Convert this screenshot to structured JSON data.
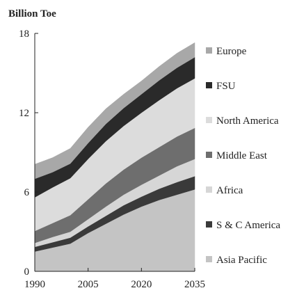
{
  "chart_data": {
    "type": "area",
    "stacked": true,
    "ylabel": "Billion Toe",
    "x": [
      1990,
      1995,
      2000,
      2005,
      2010,
      2015,
      2020,
      2025,
      2030,
      2035
    ],
    "xticks": [
      1990,
      2005,
      2020,
      2035
    ],
    "yticks": [
      0,
      6,
      12,
      18
    ],
    "xlim": [
      1990,
      2035
    ],
    "ylim": [
      0,
      18
    ],
    "grid": false,
    "legend_position": "right",
    "series": [
      {
        "name": "Asia Pacific",
        "color": "#c4c4c4",
        "values": [
          1.5,
          1.8,
          2.1,
          2.9,
          3.6,
          4.3,
          4.9,
          5.4,
          5.8,
          6.2
        ]
      },
      {
        "name": "S & C America",
        "color": "#3a3a3a",
        "values": [
          0.35,
          0.4,
          0.45,
          0.5,
          0.6,
          0.7,
          0.75,
          0.85,
          0.95,
          1.0
        ]
      },
      {
        "name": "Africa",
        "color": "#d6d6d6",
        "values": [
          0.3,
          0.4,
          0.45,
          0.55,
          0.7,
          0.8,
          0.9,
          1.0,
          1.2,
          1.3
        ]
      },
      {
        "name": "Middle East",
        "color": "#6e6e6e",
        "values": [
          0.9,
          1.05,
          1.25,
          1.5,
          1.75,
          1.9,
          2.05,
          2.15,
          2.25,
          2.35
        ]
      },
      {
        "name": "North America",
        "color": "#dcdcdc",
        "values": [
          2.55,
          2.7,
          2.8,
          3.05,
          3.2,
          3.3,
          3.4,
          3.55,
          3.65,
          3.75
        ]
      },
      {
        "name": "FSU",
        "color": "#2a2a2a",
        "values": [
          1.4,
          1.15,
          1.1,
          1.2,
          1.3,
          1.35,
          1.4,
          1.5,
          1.55,
          1.6
        ]
      },
      {
        "name": "Europe",
        "color": "#a8a8a8",
        "values": [
          1.1,
          1.1,
          1.15,
          1.2,
          1.15,
          1.05,
          1.0,
          1.05,
          1.1,
          1.1
        ]
      }
    ],
    "legend_order": [
      "Europe",
      "FSU",
      "North America",
      "Middle East",
      "Africa",
      "S & C America",
      "Asia Pacific"
    ]
  }
}
